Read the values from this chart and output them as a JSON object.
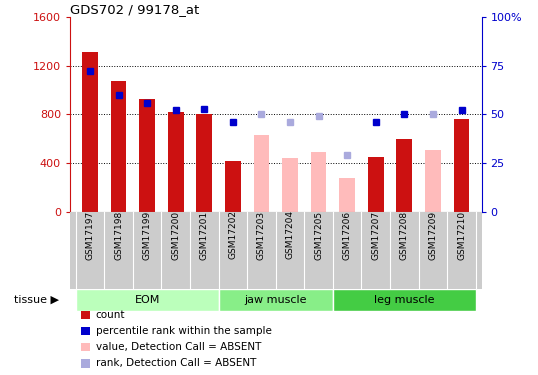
{
  "title": "GDS702 / 99178_at",
  "samples": [
    "GSM17197",
    "GSM17198",
    "GSM17199",
    "GSM17200",
    "GSM17201",
    "GSM17202",
    "GSM17203",
    "GSM17204",
    "GSM17205",
    "GSM17206",
    "GSM17207",
    "GSM17208",
    "GSM17209",
    "GSM17210"
  ],
  "bar_values": [
    1310,
    1070,
    930,
    820,
    800,
    420,
    null,
    null,
    null,
    null,
    450,
    600,
    null,
    760
  ],
  "bar_values_absent": [
    null,
    null,
    null,
    null,
    null,
    null,
    630,
    440,
    490,
    280,
    null,
    null,
    510,
    null
  ],
  "rank_present": [
    72,
    60,
    56,
    52,
    53,
    46,
    null,
    null,
    null,
    null,
    46,
    50,
    null,
    52
  ],
  "rank_absent": [
    null,
    null,
    null,
    null,
    null,
    null,
    50,
    46,
    49,
    29,
    null,
    null,
    50,
    null
  ],
  "ylim_left": [
    0,
    1600
  ],
  "ylim_right": [
    0,
    100
  ],
  "yticks_left": [
    0,
    400,
    800,
    1200,
    1600
  ],
  "yticks_right": [
    0,
    25,
    50,
    75,
    100
  ],
  "bar_color_present": "#cc1111",
  "bar_color_absent": "#ffbbbb",
  "rank_color_present": "#0000cc",
  "rank_color_absent": "#aaaadd",
  "tissue_groups": [
    {
      "label": "EOM",
      "start": 0,
      "end": 4,
      "color": "#bbffbb"
    },
    {
      "label": "jaw muscle",
      "start": 5,
      "end": 8,
      "color": "#88ee88"
    },
    {
      "label": "leg muscle",
      "start": 9,
      "end": 13,
      "color": "#44cc44"
    }
  ],
  "left_axis_color": "#cc1111",
  "right_axis_color": "#0000cc",
  "background_xtick": "#cccccc",
  "legend_items": [
    {
      "label": "count",
      "color": "#cc1111"
    },
    {
      "label": "percentile rank within the sample",
      "color": "#0000cc"
    },
    {
      "label": "value, Detection Call = ABSENT",
      "color": "#ffbbbb"
    },
    {
      "label": "rank, Detection Call = ABSENT",
      "color": "#aaaadd"
    }
  ],
  "tissue_label": "tissue",
  "marker_size": 5,
  "bar_width": 0.55
}
